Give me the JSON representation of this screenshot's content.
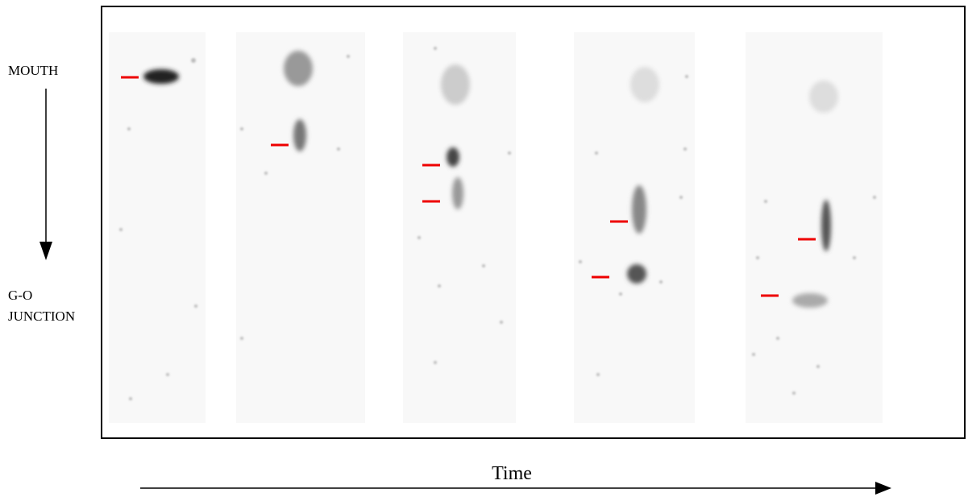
{
  "labels": {
    "top": "MOUTH",
    "bottom": [
      "G-O",
      "JUNCTION"
    ],
    "x_axis": "Time"
  }
}
